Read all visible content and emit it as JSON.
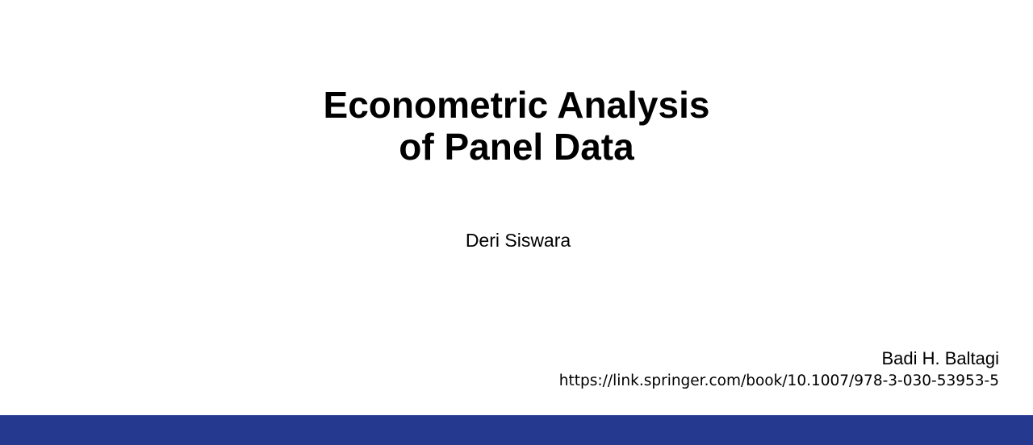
{
  "slide": {
    "title_line1": "Econometric Analysis",
    "title_line2": "of Panel Data",
    "presenter": "Deri Siswara",
    "author": "Badi H. Baltagi",
    "source_url": "https://link.springer.com/book/10.1007/978-3-030-53953-5"
  },
  "colors": {
    "background": "#ffffff",
    "bottom_bar": "#253a8e",
    "text": "#000000"
  }
}
